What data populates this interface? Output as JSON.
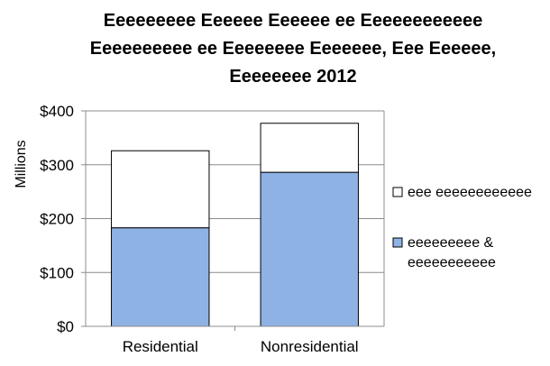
{
  "chart_data": {
    "type": "bar",
    "stacked": true,
    "title_lines": [
      "Eeeeeeeee Eeeeee Eeeeee ee Eeeeeeeeeeee",
      "Eeeeeeeeee ee Eeeeeeee Eeeeeee, Eee Eeeeee,",
      "Eeeeeeee 2012"
    ],
    "ylabel": "Millions",
    "xlabel": "",
    "categories": [
      "Residential",
      "Nonresidential"
    ],
    "yticks": [
      "$0",
      "$100",
      "$200",
      "$300",
      "$400"
    ],
    "ylim": [
      0,
      400
    ],
    "grid": true,
    "legend_position": "right",
    "series": [
      {
        "name": "eeeeeeeee & eeeeeeeeeee",
        "legend_lines": [
          "eeeeeeeee &",
          "eeeeeeeeeee"
        ],
        "values": [
          183,
          286
        ],
        "color": "#8eb2e3"
      },
      {
        "name": "eee eeeeeeeeeeee",
        "legend_lines": [
          "eee eeeeeeeeeeee"
        ],
        "values": [
          143,
          91
        ],
        "color": "#ffffff"
      }
    ]
  }
}
